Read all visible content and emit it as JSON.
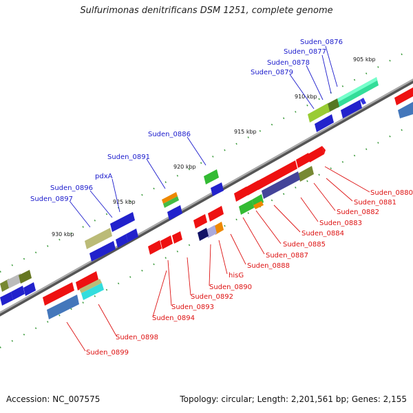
{
  "title": "Sulfurimonas denitrificans DSM 1251, complete genome",
  "footer": {
    "accession": "Accession: NC_007575",
    "summary": "Topology: circular; Length: 2,201,561 bp; Genes: 2,155"
  },
  "colors": {
    "forward_label": "#1a1acc",
    "reverse_label": "#dd1111",
    "backbone": "#888888",
    "tick": "#2a8a2a"
  },
  "scale": {
    "ticks": [
      "905 kbp",
      "910 kbp",
      "915 kbp",
      "920 kbp",
      "925 kbp",
      "930 kbp"
    ]
  },
  "genes_forward": [
    "Suden_0876",
    "Suden_0877",
    "Suden_0878",
    "Suden_0879",
    "Suden_0886",
    "Suden_0891",
    "pdxA",
    "Suden_0896",
    "Suden_0897"
  ],
  "genes_reverse": [
    "Suden_0880",
    "Suden_0881",
    "Suden_0882",
    "Suden_0883",
    "Suden_0884",
    "Suden_0885",
    "Suden_0887",
    "Suden_0888",
    "hisG",
    "Suden_0890",
    "Suden_0892",
    "Suden_0893",
    "Suden_0894",
    "Suden_0898",
    "Suden_0899"
  ]
}
